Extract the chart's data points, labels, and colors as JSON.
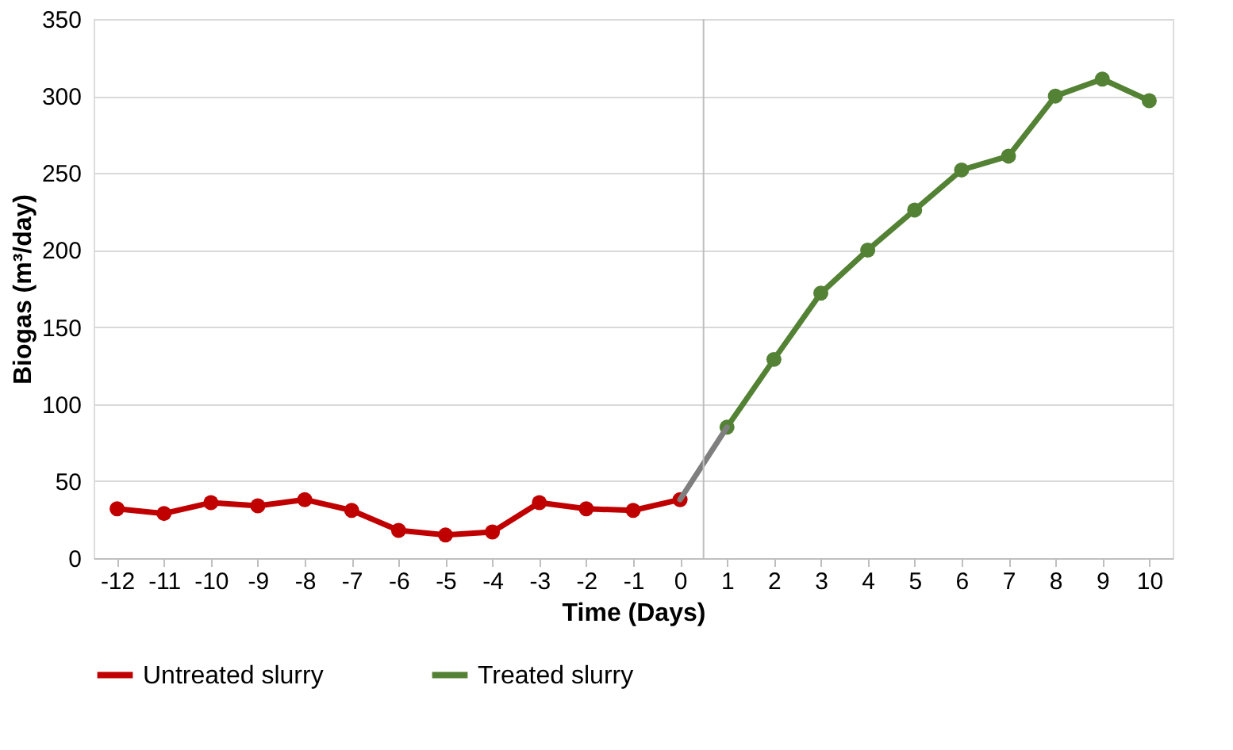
{
  "chart_data": {
    "type": "line",
    "xlabel": "Time (Days)",
    "ylabel": "Biogas (m³/day)",
    "xlim": [
      -12.5,
      10.5
    ],
    "xticks": [
      -12,
      -11,
      -10,
      -9,
      -8,
      -7,
      -6,
      -5,
      -4,
      -3,
      -2,
      -1,
      0,
      1,
      2,
      3,
      4,
      5,
      6,
      7,
      8,
      9,
      10
    ],
    "ylim": [
      0,
      350
    ],
    "yticks": [
      0,
      50,
      100,
      150,
      200,
      250,
      300,
      350
    ],
    "grid": "y",
    "legend": "bottom",
    "marker": "circle",
    "line_style": "solid",
    "series": [
      {
        "name": "Untreated slurry",
        "color": "#c00000",
        "x": [
          -12,
          -11,
          -10,
          -9,
          -8,
          -7,
          -6,
          -5,
          -4,
          -3,
          -2,
          -1,
          0
        ],
        "values": [
          32,
          29,
          36,
          34,
          38,
          31,
          18,
          15,
          17,
          36,
          32,
          31,
          38
        ]
      },
      {
        "name": "Treated slurry",
        "color": "#548235",
        "x": [
          1,
          2,
          3,
          4,
          5,
          6,
          7,
          8,
          9,
          10
        ],
        "values": [
          85,
          129,
          172,
          200,
          226,
          252,
          261,
          300,
          311,
          297
        ]
      },
      {
        "color": "#7f7f7f",
        "x": [
          0,
          1
        ],
        "values": [
          38,
          85
        ],
        "marker": "none"
      }
    ],
    "ref_lines": [
      {
        "axis": "x",
        "value": 0.5,
        "color": "#bfbfbf"
      }
    ]
  }
}
